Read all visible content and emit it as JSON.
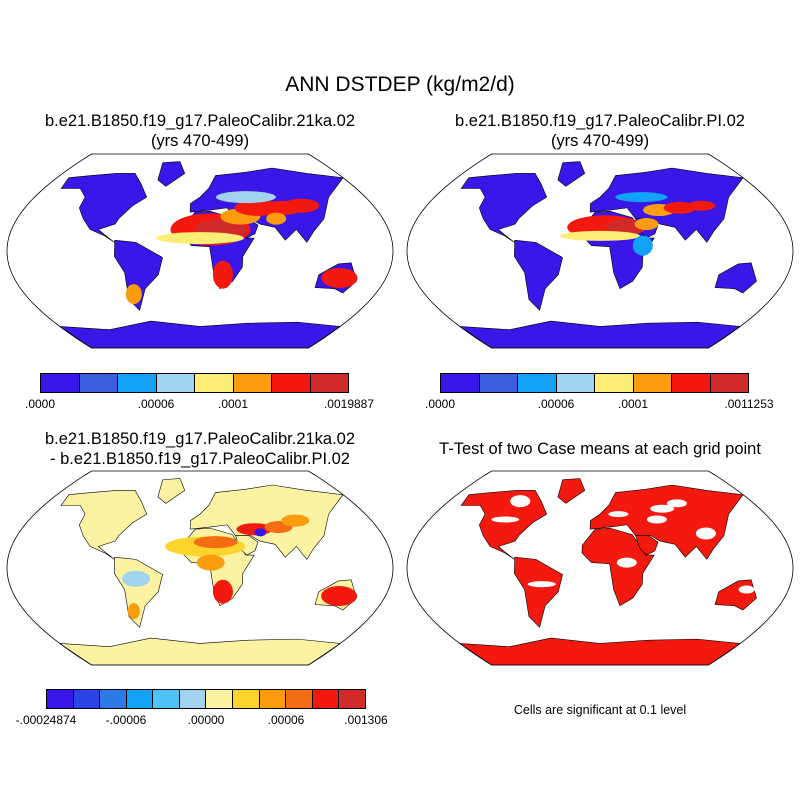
{
  "title": "ANN DSTDEP (kg/m2/d)",
  "panels": [
    {
      "title_line1": "b.e21.B1850.f19_g17.PaleoCalibr.21ka.02",
      "title_line2": "(yrs 470-499)",
      "colorbar": {
        "colors": [
          "#3a17e8",
          "#3d5ee0",
          "#12a2f7",
          "#a1d2ef",
          "#fbed76",
          "#fb9c0f",
          "#f3190f",
          "#d12a2a"
        ],
        "labels": [
          ".0000",
          ".00006",
          ".0001",
          ".0019887"
        ]
      }
    },
    {
      "title_line1": "b.e21.B1850.f19_g17.PaleoCalibr.PI.02",
      "title_line2": "(yrs 470-499)",
      "colorbar": {
        "colors": [
          "#3a17e8",
          "#3d5ee0",
          "#12a2f7",
          "#a1d2ef",
          "#fbed76",
          "#fb9c0f",
          "#f3190f",
          "#d12a2a"
        ],
        "labels": [
          ".0000",
          ".00006",
          ".0001",
          ".0011253"
        ]
      }
    },
    {
      "title_line1": "b.e21.B1850.f19_g17.PaleoCalibr.21ka.02",
      "title_line2": "- b.e21.B1850.f19_g17.PaleoCalibr.PI.02",
      "colorbar": {
        "colors": [
          "#3a17e8",
          "#2c44e6",
          "#2d7ae6",
          "#12a2f7",
          "#4fc3f3",
          "#a1d2ef",
          "#fbf3a2",
          "#fdd42b",
          "#fb9c0f",
          "#f46d13",
          "#f3190f",
          "#d12a2a"
        ],
        "labels": [
          "-.00024874",
          "-.00006",
          ".00000",
          ".00006",
          ".001306"
        ]
      }
    },
    {
      "title_line1": "T-Test of two Case means at each grid point",
      "note": "Cells are significant at 0.1 level"
    }
  ]
}
